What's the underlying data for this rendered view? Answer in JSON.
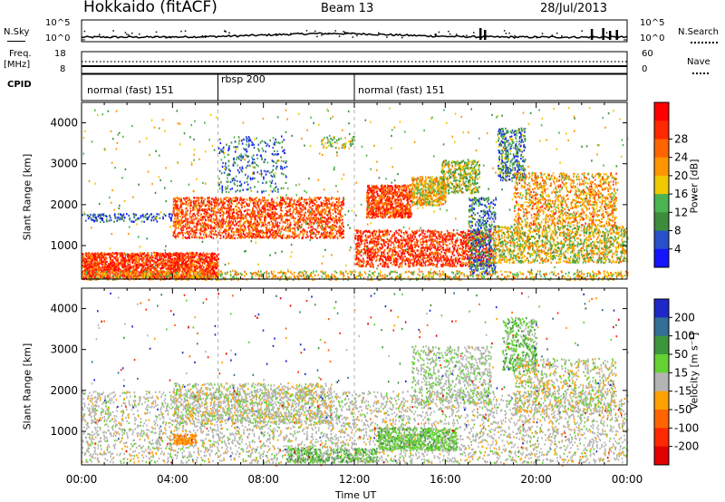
{
  "header": {
    "radar": "Hokkaido (fitACF)",
    "beam": "Beam 13",
    "date": "28/Jul/2013"
  },
  "top_panel": {
    "left_label": "N.Sky",
    "right_label": "N.Search",
    "left_ticks": [
      "10^5",
      "10^0"
    ],
    "right_ticks": [
      "10^5",
      "10^0"
    ]
  },
  "freq_panel": {
    "left_label_line1": "Freq.",
    "left_label_line2": "[MHz]",
    "right_label": "Nave",
    "left_ticks": [
      "18",
      "8"
    ],
    "right_ticks": [
      "60",
      "0"
    ]
  },
  "cpid": {
    "label": "CPID",
    "segments": [
      {
        "name": "normal (fast) 151",
        "start_h": 0,
        "end_h": 6
      },
      {
        "name": "rbsp 200",
        "start_h": 6,
        "end_h": 12
      },
      {
        "name": "normal (fast) 151",
        "start_h": 12,
        "end_h": 24
      }
    ]
  },
  "chart_data": [
    {
      "type": "heatmap",
      "title": "",
      "xlabel": "",
      "ylabel": "Slant Range [km]",
      "xlim": [
        0,
        24
      ],
      "ylim": [
        180,
        4500
      ],
      "y_ticks": [
        1000,
        2000,
        3000,
        4000
      ],
      "colorbar": {
        "label": "Power [dB]",
        "ticks": [
          "4",
          "8",
          "12",
          "16",
          "20",
          "24",
          "28"
        ],
        "colors": [
          "#1414ff",
          "#2850c8",
          "#3c8c3c",
          "#4bb450",
          "#f0c800",
          "#ff9600",
          "#ff6400",
          "#ff2800",
          "#ff0000"
        ]
      },
      "features": [
        {
          "desc": "low-range strong echoes",
          "x": [
            0,
            6
          ],
          "y": [
            200,
            900
          ],
          "value_db": 28
        },
        {
          "desc": "band",
          "x": [
            4,
            11
          ],
          "y": [
            1300,
            2200
          ],
          "value_db": 24
        },
        {
          "desc": "arc",
          "x": [
            12.5,
            17.5
          ],
          "y": [
            1700,
            3100
          ],
          "value_db": 24
        },
        {
          "desc": "arc",
          "x": [
            18.5,
            23
          ],
          "y": [
            1500,
            3200
          ],
          "value_db": 20
        },
        {
          "desc": "patch",
          "x": [
            13,
            18
          ],
          "y": [
            500,
            1300
          ],
          "value_db": 28
        }
      ]
    },
    {
      "type": "heatmap",
      "title": "",
      "xlabel": "Time UT",
      "ylabel": "Slant Range [km]",
      "xlim": [
        0,
        24
      ],
      "ylim": [
        180,
        4500
      ],
      "x_ticks": [
        "00:00",
        "04:00",
        "08:00",
        "12:00",
        "16:00",
        "20:00",
        "00:00"
      ],
      "y_ticks": [
        1000,
        2000,
        3000,
        4000
      ],
      "colorbar": {
        "label": "Velocity [m s⁻¹]",
        "ticks": [
          "200",
          "100",
          "50",
          "15",
          "-15",
          "-50",
          "-100",
          "-200"
        ],
        "colors": [
          "#1e28c8",
          "#326e96",
          "#3c963c",
          "#64d232",
          "#b4b4b4",
          "#ffa000",
          "#ff6400",
          "#ff2800",
          "#e10000"
        ]
      },
      "features": [
        {
          "desc": "ground scatter",
          "x": [
            0,
            24
          ],
          "y": [
            300,
            2100
          ],
          "value_ms": 0
        },
        {
          "desc": "positive velocity patch",
          "x": [
            13,
            17
          ],
          "y": [
            600,
            1100
          ],
          "value_ms": 50
        },
        {
          "desc": "positive velocity patch",
          "x": [
            18.5,
            19.5
          ],
          "y": [
            3000,
            3600
          ],
          "value_ms": 50
        },
        {
          "desc": "negative velocity patch",
          "x": [
            4,
            5
          ],
          "y": [
            700,
            900
          ],
          "value_ms": -50
        }
      ]
    }
  ]
}
